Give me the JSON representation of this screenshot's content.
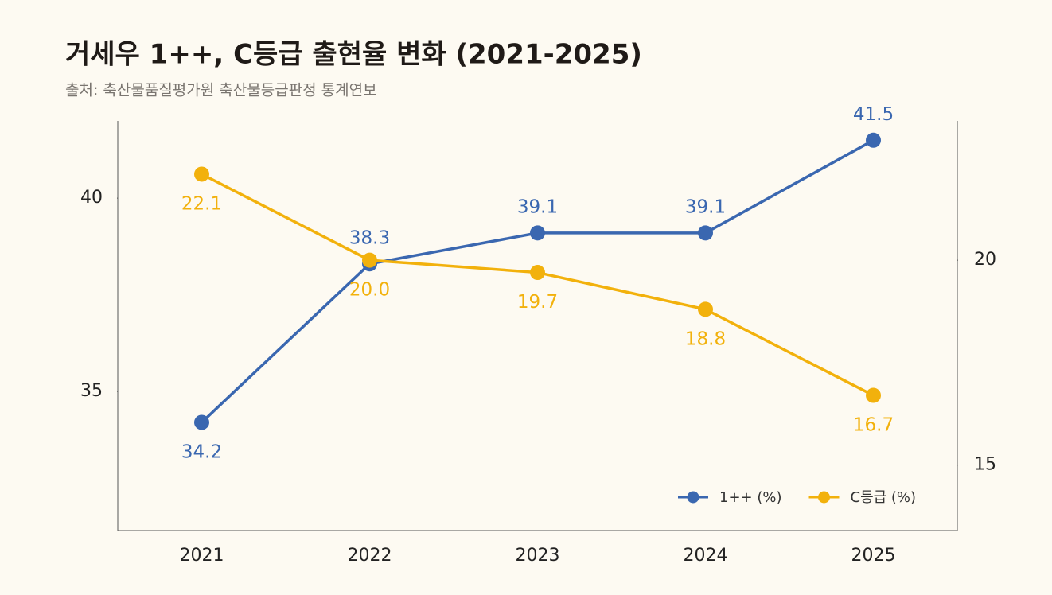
{
  "chart_data": {
    "type": "line",
    "title": "거세우 1++, C등급 출현율 변화 (2021-2025)",
    "subtitle": "출처: 축산물품질평가원 축산물등급판정 통계연보",
    "categories": [
      "2021",
      "2022",
      "2023",
      "2024",
      "2025"
    ],
    "series": [
      {
        "name": "1++ (%)",
        "color": "#3a67b0",
        "values": [
          34.2,
          38.3,
          39.1,
          39.1,
          41.5
        ]
      },
      {
        "name": "C등급 (%)",
        "color": "#f2b10c",
        "axis": "y2",
        "values": [
          22.1,
          20.0,
          19.7,
          18.8,
          16.7
        ],
        "value_labels": [
          "22.1",
          "20.0",
          "19.7",
          "18.8",
          "16.7"
        ]
      }
    ],
    "ylim": [
      31.4,
      42
    ],
    "yticks": [
      35,
      40
    ],
    "y2lim": [
      13.4,
      23.4
    ],
    "y2ticks": [
      15,
      20
    ],
    "legend": "lower right"
  }
}
